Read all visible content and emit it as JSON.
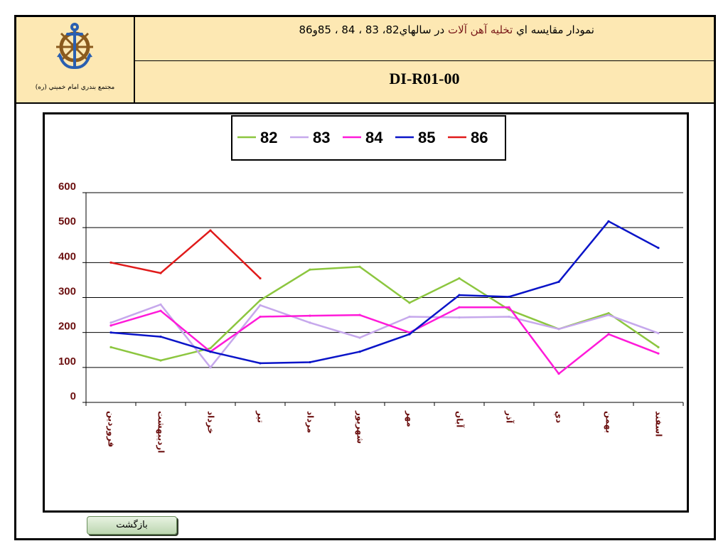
{
  "header": {
    "title_prefix": "نمودار مقايسه اي ",
    "title_highlight": "تخليه آهن آلات",
    "title_suffix": " در سالهاي82، 83 ، 84 ، 85و86",
    "doc_code": "DI-R01-00",
    "org_name": "مجتمع بندري امام خميني (ره)",
    "logo_icon": "anchor-wheel-logo"
  },
  "back_button": {
    "label": "بازگشت"
  },
  "colors": {
    "header_bg": "#fde8b3",
    "s82": "#8cc63f",
    "s83": "#c6a8ec",
    "s84": "#ff1ad9",
    "s85": "#0a14c8",
    "s86": "#e01a1a",
    "tick_label": "#6b0f0f"
  },
  "chart_data": {
    "type": "line",
    "title": "",
    "xlabel": "",
    "ylabel": "",
    "ylim": [
      0,
      600
    ],
    "yticks": [
      0,
      100,
      200,
      300,
      400,
      500,
      600
    ],
    "grid": true,
    "legend_position": "top-center",
    "categories": [
      "فروردين",
      "ارديبهشت",
      "خرداد",
      "تير",
      "مرداد",
      "شهريور",
      "مهر",
      "آبان",
      "آذر",
      "دي",
      "بهمن",
      "اسفند"
    ],
    "series": [
      {
        "name": "82",
        "color": "#8cc63f",
        "values": [
          158,
          120,
          155,
          292,
          380,
          388,
          285,
          355,
          265,
          210,
          255,
          158
        ]
      },
      {
        "name": "83",
        "color": "#c6a8ec",
        "values": [
          228,
          280,
          100,
          278,
          228,
          185,
          245,
          243,
          245,
          210,
          250,
          198
        ]
      },
      {
        "name": "84",
        "color": "#ff1ad9",
        "values": [
          220,
          262,
          145,
          245,
          248,
          250,
          200,
          272,
          272,
          82,
          195,
          140
        ]
      },
      {
        "name": "85",
        "color": "#0a14c8",
        "values": [
          200,
          188,
          145,
          112,
          115,
          145,
          195,
          307,
          302,
          345,
          518,
          442
        ]
      },
      {
        "name": "86",
        "color": "#e01a1a",
        "values": [
          400,
          370,
          492,
          355,
          null,
          null,
          null,
          null,
          null,
          null,
          null,
          null
        ]
      }
    ]
  }
}
